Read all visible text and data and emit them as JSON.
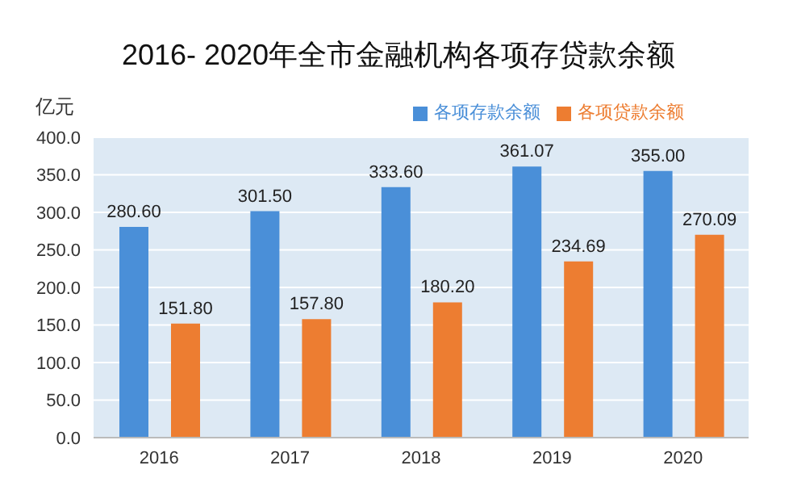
{
  "chart_data": {
    "type": "bar",
    "title": "2016- 2020年全市金融机构各项存贷款余额",
    "ylabel": "亿元",
    "categories": [
      "2016",
      "2017",
      "2018",
      "2019",
      "2020"
    ],
    "series": [
      {
        "name": "各项存款余额",
        "color": "#4a8fd8",
        "values": [
          280.6,
          301.5,
          333.6,
          361.07,
          355.0
        ],
        "value_labels": [
          "280.60",
          "301.50",
          "333.60",
          "361.07",
          "355.00"
        ]
      },
      {
        "name": "各项贷款余额",
        "color": "#ed7d31",
        "values": [
          151.8,
          157.8,
          180.2,
          234.69,
          270.09
        ],
        "value_labels": [
          "151.80",
          "157.80",
          "180.20",
          "234.69",
          "270.09"
        ]
      }
    ],
    "ylim": [
      0,
      400
    ],
    "yticks": [
      {
        "value": 0,
        "label": "0.0"
      },
      {
        "value": 50,
        "label": "50.0"
      },
      {
        "value": 100,
        "label": "100.0"
      },
      {
        "value": 150,
        "label": "150.0"
      },
      {
        "value": 200,
        "label": "200.0"
      },
      {
        "value": 250,
        "label": "250.0"
      },
      {
        "value": 300,
        "label": "300.0"
      },
      {
        "value": 350,
        "label": "350.0"
      },
      {
        "value": 400,
        "label": "400.0"
      }
    ],
    "grid": "y",
    "legend": "top right"
  }
}
